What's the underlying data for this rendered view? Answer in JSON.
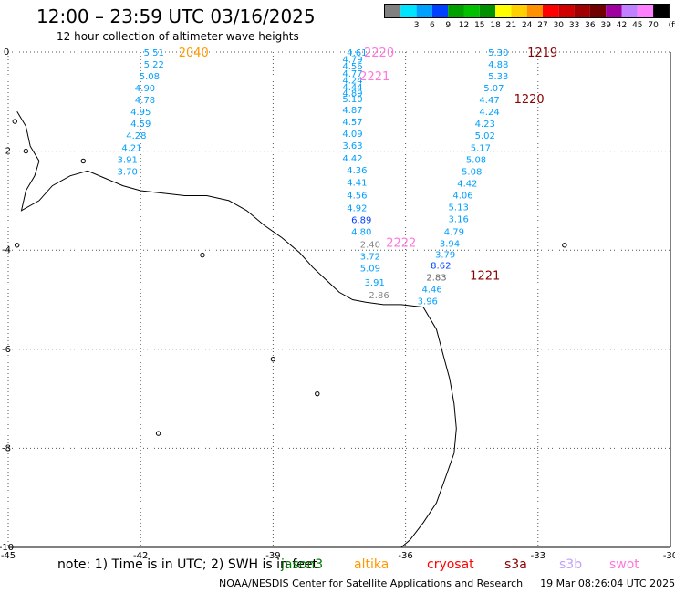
{
  "header": {
    "title": "12:00 – 23:59 UTC 03/16/2025",
    "subtitle": "12 hour collection of altimeter wave heights"
  },
  "legend": {
    "unit": "(ft)",
    "items": [
      {
        "label": "",
        "color": "#808080"
      },
      {
        "label": "3",
        "color": "#00e5ff"
      },
      {
        "label": "6",
        "color": "#00a0ff"
      },
      {
        "label": "9",
        "color": "#0040ff"
      },
      {
        "label": "12",
        "color": "#00a000"
      },
      {
        "label": "15",
        "color": "#00c000"
      },
      {
        "label": "18",
        "color": "#009000"
      },
      {
        "label": "21",
        "color": "#ffff00"
      },
      {
        "label": "24",
        "color": "#ffd000"
      },
      {
        "label": "27",
        "color": "#ff9000"
      },
      {
        "label": "30",
        "color": "#ff0000"
      },
      {
        "label": "33",
        "color": "#d00000"
      },
      {
        "label": "36",
        "color": "#a00000"
      },
      {
        "label": "39",
        "color": "#700000"
      },
      {
        "label": "42",
        "color": "#a000a0"
      },
      {
        "label": "45",
        "color": "#c080ff"
      },
      {
        "label": "70",
        "color": "#ff80ff"
      },
      {
        "label": "",
        "color": "#000000"
      }
    ]
  },
  "axes": {
    "x_ticks": [
      {
        "label": "-45",
        "value": -45
      },
      {
        "label": "-42",
        "value": -42
      },
      {
        "label": "-39",
        "value": -39
      },
      {
        "label": "-36",
        "value": -36
      },
      {
        "label": "-33",
        "value": -33
      },
      {
        "label": "-30",
        "value": -30
      }
    ],
    "y_ticks": [
      {
        "label": "0",
        "value": 0
      },
      {
        "label": "-2",
        "value": -2
      },
      {
        "label": "-4",
        "value": -4
      },
      {
        "label": "-6",
        "value": -6
      },
      {
        "label": "-8",
        "value": -8
      },
      {
        "label": "-10",
        "value": -10
      }
    ],
    "lon_range": [
      -45,
      -30
    ],
    "lat_range": [
      -10,
      0
    ]
  },
  "tracks": [
    {
      "time_label": "2040",
      "time_color": "#ff9900",
      "time_lon": -40.8,
      "time_lat": 0.0,
      "values": [
        {
          "v": "5.51",
          "lon": -41.7,
          "lat": 0.0
        },
        {
          "v": "5.22",
          "lon": -41.7,
          "lat": -0.24
        },
        {
          "v": "5.08",
          "lon": -41.8,
          "lat": -0.48
        },
        {
          "v": "4.90",
          "lon": -41.9,
          "lat": -0.72
        },
        {
          "v": "4.78",
          "lon": -41.9,
          "lat": -0.96
        },
        {
          "v": "4.95",
          "lon": -42.0,
          "lat": -1.2
        },
        {
          "v": "4.59",
          "lon": -42.0,
          "lat": -1.44
        },
        {
          "v": "4.28",
          "lon": -42.1,
          "lat": -1.68
        },
        {
          "v": "4.21",
          "lon": -42.2,
          "lat": -1.92
        },
        {
          "v": "3.91",
          "lon": -42.3,
          "lat": -2.16
        },
        {
          "v": "3.70",
          "lon": -42.3,
          "lat": -2.4
        }
      ]
    },
    {
      "time_label": "2220",
      "time_color": "#ff77dd",
      "time_lon": -36.6,
      "time_lat": 0.0,
      "values": [
        {
          "v": "4.61",
          "lon": -37.1,
          "lat": 0.0
        },
        {
          "v": "4.79",
          "lon": -37.2,
          "lat": -0.14
        },
        {
          "v": "4.56",
          "lon": -37.2,
          "lat": -0.28
        },
        {
          "v": "4.77",
          "lon": -37.2,
          "lat": -0.42
        },
        {
          "v": "4.24",
          "lon": -37.2,
          "lat": -0.56
        },
        {
          "v": "4.44",
          "lon": -37.2,
          "lat": -0.7
        },
        {
          "v": "4.89",
          "lon": -37.2,
          "lat": -0.82
        },
        {
          "v": "5.10",
          "lon": -37.2,
          "lat": -0.94
        },
        {
          "v": "4.87",
          "lon": -37.2,
          "lat": -1.16
        },
        {
          "v": "4.57",
          "lon": -37.2,
          "lat": -1.4
        },
        {
          "v": "4.09",
          "lon": -37.2,
          "lat": -1.64
        },
        {
          "v": "3.63",
          "lon": -37.2,
          "lat": -1.88
        },
        {
          "v": "4.42",
          "lon": -37.2,
          "lat": -2.14
        },
        {
          "v": "4.36",
          "lon": -37.1,
          "lat": -2.38
        },
        {
          "v": "4.41",
          "lon": -37.1,
          "lat": -2.62
        },
        {
          "v": "4.56",
          "lon": -37.1,
          "lat": -2.88
        },
        {
          "v": "4.92",
          "lon": -37.1,
          "lat": -3.14
        },
        {
          "v": "6.89",
          "lon": -37.0,
          "lat": -3.38
        },
        {
          "v": "4.80",
          "lon": -37.0,
          "lat": -3.62
        }
      ]
    },
    {
      "time_label": "2221",
      "time_color": "#ff77dd",
      "time_lon": -36.7,
      "time_lat": -0.48,
      "values": []
    },
    {
      "time_label": "2222",
      "time_color": "#ff77dd",
      "time_lon": -36.1,
      "time_lat": -3.84,
      "values": [
        {
          "v": "2.40",
          "lon": -36.8,
          "lat": -3.88,
          "c": "#888888"
        },
        {
          "v": "3.72",
          "lon": -36.8,
          "lat": -4.12
        },
        {
          "v": "5.09",
          "lon": -36.8,
          "lat": -4.36
        },
        {
          "v": "3.91",
          "lon": -36.7,
          "lat": -4.64
        },
        {
          "v": "2.86",
          "lon": -36.6,
          "lat": -4.9,
          "c": "#888888"
        }
      ]
    },
    {
      "time_label": "1219",
      "time_color": "#8b0000",
      "time_lon": -32.9,
      "time_lat": 0.0,
      "values": [
        {
          "v": "5.30",
          "lon": -33.9,
          "lat": 0.0
        },
        {
          "v": "4.88",
          "lon": -33.9,
          "lat": -0.24
        },
        {
          "v": "5.33",
          "lon": -33.9,
          "lat": -0.48
        },
        {
          "v": "5.07",
          "lon": -34.0,
          "lat": -0.72
        },
        {
          "v": "4.47",
          "lon": -34.1,
          "lat": -0.96
        },
        {
          "v": "4.24",
          "lon": -34.1,
          "lat": -1.2
        },
        {
          "v": "4.23",
          "lon": -34.2,
          "lat": -1.44
        }
      ]
    },
    {
      "time_label": "1220",
      "time_color": "#8b0000",
      "time_lon": -33.2,
      "time_lat": -0.94,
      "values": [
        {
          "v": "5.02",
          "lon": -34.2,
          "lat": -1.68
        },
        {
          "v": "5.17",
          "lon": -34.3,
          "lat": -1.92
        },
        {
          "v": "5.08",
          "lon": -34.4,
          "lat": -2.16
        },
        {
          "v": "5.08",
          "lon": -34.5,
          "lat": -2.4
        },
        {
          "v": "4.42",
          "lon": -34.6,
          "lat": -2.64
        },
        {
          "v": "4.06",
          "lon": -34.7,
          "lat": -2.88
        },
        {
          "v": "5.13",
          "lon": -34.8,
          "lat": -3.12
        },
        {
          "v": "3.16",
          "lon": -34.8,
          "lat": -3.36
        },
        {
          "v": "4.79",
          "lon": -34.9,
          "lat": -3.62
        },
        {
          "v": "3.94",
          "lon": -35.0,
          "lat": -3.86
        },
        {
          "v": "3.79",
          "lon": -35.1,
          "lat": -4.08
        }
      ]
    },
    {
      "time_label": "1221",
      "time_color": "#8b0000",
      "time_lon": -34.2,
      "time_lat": -4.5,
      "values": [
        {
          "v": "8.62",
          "lon": -35.2,
          "lat": -4.3
        },
        {
          "v": "2.83",
          "lon": -35.3,
          "lat": -4.54,
          "c": "#666666"
        },
        {
          "v": "4.46",
          "lon": -35.4,
          "lat": -4.78
        },
        {
          "v": "3.96",
          "lon": -35.5,
          "lat": -5.02
        }
      ]
    }
  ],
  "notes": {
    "prefix": "note: 1) Time is in UTC; 2) SWH is in feet",
    "satellites": [
      {
        "label": "jason3",
        "color": "#007700"
      },
      {
        "label": "altika",
        "color": "#ff9900"
      },
      {
        "label": "cryosat",
        "color": "#ff0000"
      },
      {
        "label": "s3a",
        "color": "#8b0000"
      },
      {
        "label": "s3b",
        "color": "#c0a0ff"
      },
      {
        "label": "swot",
        "color": "#ff77dd"
      }
    ]
  },
  "footer": {
    "credit": "NOAA/NESDIS Center for Satellite Applications and Research",
    "timestamp": "19 Mar 08:26:04 UTC 2025"
  }
}
